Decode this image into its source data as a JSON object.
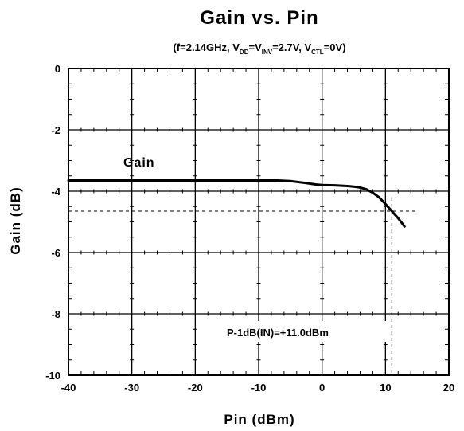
{
  "chart_data": {
    "type": "line",
    "title": "Gain vs. Pin",
    "subtitle": {
      "p1": "(f=2.14GHz, V",
      "s1": "DD",
      "p2": "=V",
      "s2": "INV",
      "p3": "=2.7V, V",
      "s3": "CTL",
      "p4": "=0V)"
    },
    "xlabel": "Pin (dBm)",
    "ylabel": "Gain (dB)",
    "xlim": [
      -40,
      20
    ],
    "ylim": [
      -10,
      0
    ],
    "xticks": [
      -40,
      -30,
      -20,
      -10,
      0,
      10,
      20
    ],
    "yticks": [
      0,
      -2,
      -4,
      -6,
      -8,
      -10
    ],
    "grid": true,
    "series": [
      {
        "name": "Gain",
        "x": [
          -40,
          -35,
          -30,
          -25,
          -20,
          -15,
          -10,
          -7,
          -5,
          -3,
          -1,
          0,
          2,
          4,
          5,
          6,
          7,
          8,
          9,
          10,
          11,
          12,
          13
        ],
        "y": [
          -3.65,
          -3.65,
          -3.65,
          -3.65,
          -3.65,
          -3.65,
          -3.65,
          -3.65,
          -3.67,
          -3.72,
          -3.78,
          -3.8,
          -3.81,
          -3.83,
          -3.85,
          -3.88,
          -3.94,
          -4.05,
          -4.2,
          -4.42,
          -4.65,
          -4.88,
          -5.15
        ]
      }
    ],
    "annotations": {
      "series_label": "Gain",
      "p1db_label": "P-1dB(IN)=+11.0dBm",
      "p1db_x": 11.0,
      "p1db_gain": -4.65
    }
  }
}
